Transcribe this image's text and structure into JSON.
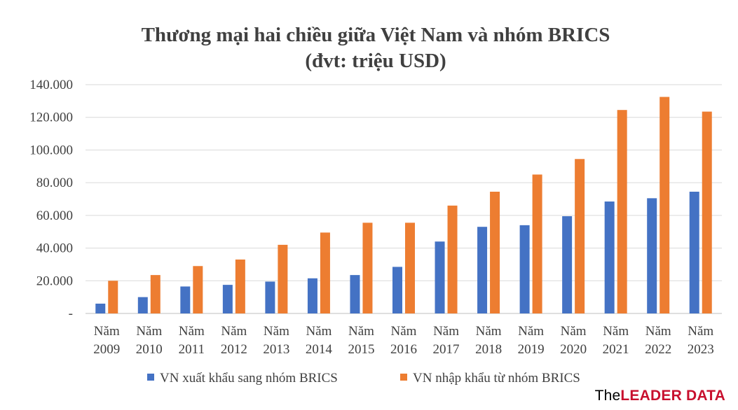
{
  "chart_data": {
    "type": "bar",
    "title": "Thương mại hai chiều giữa Việt Nam và nhóm BRICS",
    "subtitle": "(đvt: triệu USD)",
    "categories": [
      [
        "Năm",
        "2009"
      ],
      [
        "Năm",
        "2010"
      ],
      [
        "Năm",
        "2011"
      ],
      [
        "Năm",
        "2012"
      ],
      [
        "Năm",
        "2013"
      ],
      [
        "Năm",
        "2014"
      ],
      [
        "Năm",
        "2015"
      ],
      [
        "Năm",
        "2016"
      ],
      [
        "Năm",
        "2017"
      ],
      [
        "Năm",
        "2018"
      ],
      [
        "Năm",
        "2019"
      ],
      [
        "Năm",
        "2020"
      ],
      [
        "Năm",
        "2021"
      ],
      [
        "Năm",
        "2022"
      ],
      [
        "Năm",
        "2023"
      ]
    ],
    "series": [
      {
        "name": "VN xuất khẩu sang nhóm BRICS",
        "color": "#4472c4",
        "values": [
          6000,
          10000,
          16500,
          17500,
          19500,
          21500,
          23500,
          28500,
          44000,
          53000,
          54000,
          59500,
          68500,
          70500,
          74500
        ]
      },
      {
        "name": "VN nhập khẩu từ nhóm BRICS",
        "color": "#ed7d31",
        "values": [
          20000,
          23500,
          29000,
          33000,
          42000,
          49500,
          55500,
          55500,
          66000,
          74500,
          85000,
          94500,
          124500,
          132500,
          123500
        ]
      }
    ],
    "ylim": [
      0,
      140000
    ],
    "yticks": [
      {
        "value": 0,
        "label": "-"
      },
      {
        "value": 20000,
        "label": "20.000"
      },
      {
        "value": 40000,
        "label": "40.000"
      },
      {
        "value": 60000,
        "label": "60.000"
      },
      {
        "value": 80000,
        "label": "80.000"
      },
      {
        "value": 100000,
        "label": "100.000"
      },
      {
        "value": 120000,
        "label": "120.000"
      },
      {
        "value": 140000,
        "label": "140.000"
      }
    ],
    "grid": true,
    "legend": "bottom"
  },
  "brand": {
    "prefix": "The",
    "name": "LEADER DATA"
  }
}
